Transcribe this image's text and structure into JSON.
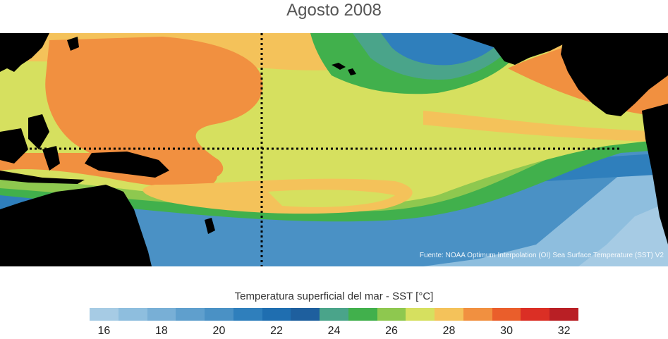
{
  "title": "Agosto 2008",
  "source": "Fuente: NOAA Optimum Interpolation (OI) Sea Surface Temperature (SST) V2",
  "colorbar": {
    "label": "Temperatura superficial del mar - SST  [°C]",
    "colors": [
      "#a6cbe4",
      "#8ebede",
      "#78afd6",
      "#5f9fcd",
      "#4a91c5",
      "#2f7fbc",
      "#1f6eb0",
      "#1e5f9e",
      "#4aa48a",
      "#41b04c",
      "#8ec84f",
      "#d6e05f",
      "#f4c25a",
      "#f19040",
      "#ea5e2b",
      "#db2f25",
      "#b91f25"
    ],
    "ticks": [
      "16",
      "18",
      "20",
      "22",
      "24",
      "26",
      "28",
      "30",
      "32"
    ]
  },
  "map": {
    "land_color": "#000000",
    "reference_line_color": "#000000",
    "reference_lines": [
      "equator",
      "meridian"
    ]
  }
}
